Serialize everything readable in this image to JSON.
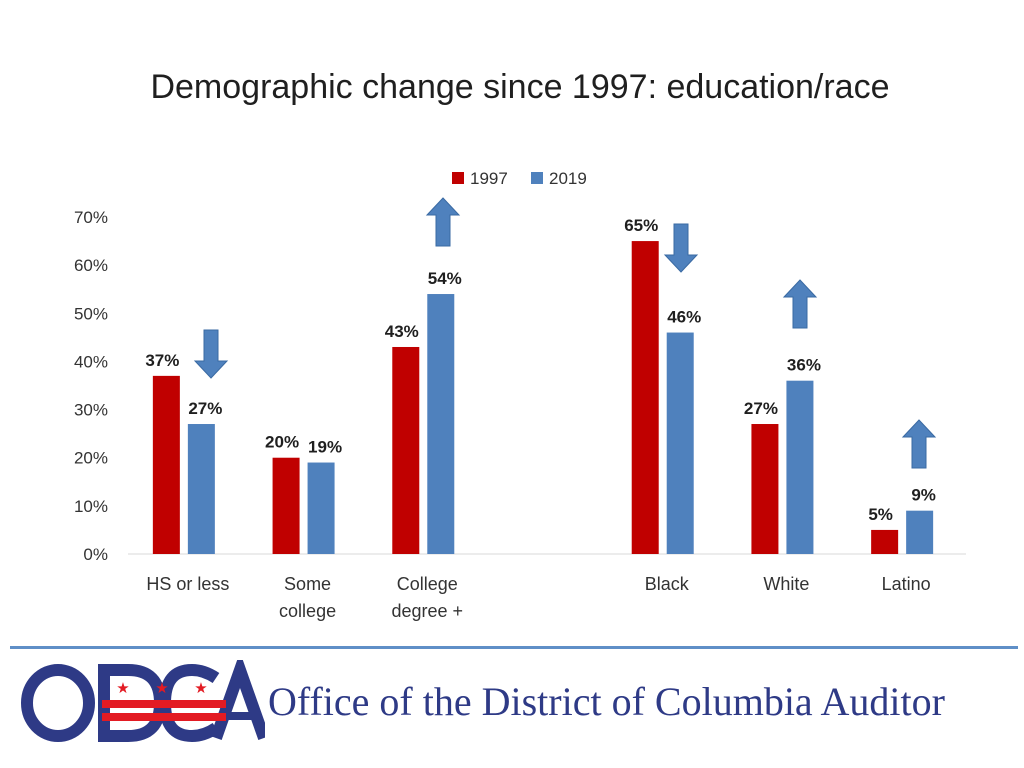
{
  "title": "Demographic change since 1997: education/race",
  "colors": {
    "series_1997": "#c00000",
    "series_2019": "#4f81bd",
    "arrow": "#4f81bd",
    "footer_line": "#5f8fc7",
    "logo_blue": "#2e3a86",
    "logo_red": "#e31b23"
  },
  "chart_data": {
    "type": "bar",
    "categories": [
      [
        "HS or less"
      ],
      [
        "Some",
        "college"
      ],
      [
        "College",
        "degree +"
      ],
      [
        ""
      ],
      [
        "Black"
      ],
      [
        "White"
      ],
      [
        "Latino"
      ]
    ],
    "series": [
      {
        "name": "1997",
        "values": [
          37,
          20,
          43,
          null,
          65,
          27,
          5
        ],
        "labels": [
          "37%",
          "20%",
          "43%",
          "",
          "65%",
          "27%",
          "5%"
        ]
      },
      {
        "name": "2019",
        "values": [
          27,
          19,
          54,
          null,
          46,
          36,
          9
        ],
        "labels": [
          "27%",
          "19%",
          "54%",
          "",
          "46%",
          "36%",
          "9%"
        ]
      }
    ],
    "ylim": [
      0,
      70
    ],
    "yticks": [
      "0%",
      "10%",
      "20%",
      "30%",
      "40%",
      "50%",
      "60%",
      "70%"
    ],
    "legend_position": "top",
    "grid": false,
    "arrows": [
      "down",
      "none",
      "up",
      "none",
      "down",
      "up",
      "up"
    ]
  },
  "footer": {
    "logo_text": "ODCA",
    "org_name": "Office of the District of Columbia Auditor"
  }
}
